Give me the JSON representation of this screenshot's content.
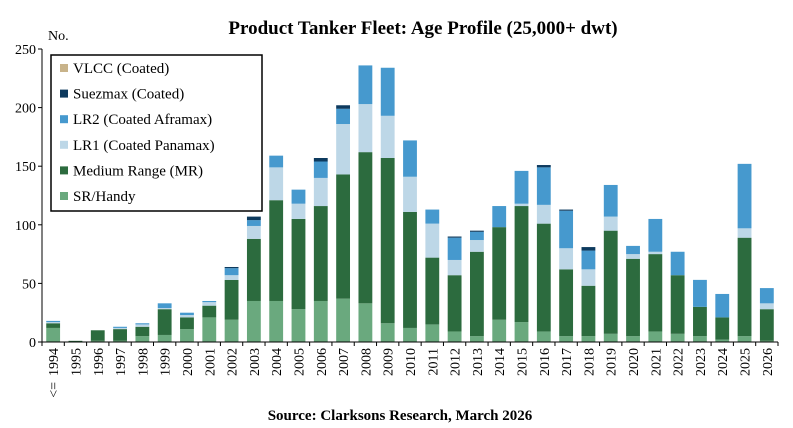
{
  "chart_data": {
    "type": "bar",
    "stacked": true,
    "title": "Product Tanker Fleet: Age Profile (25,000+ dwt)",
    "source": "Source: Clarksons Research, March 2026",
    "ylabel": "No.",
    "first_category_marker": "<=",
    "ylim": [
      0,
      250
    ],
    "yticks": [
      0,
      50,
      100,
      150,
      200,
      250
    ],
    "grid": false,
    "legend_position": "top-left",
    "categories": [
      "1994",
      "1995",
      "1996",
      "1997",
      "1998",
      "1999",
      "2000",
      "2001",
      "2002",
      "2003",
      "2004",
      "2005",
      "2006",
      "2007",
      "2008",
      "2009",
      "2010",
      "2011",
      "2012",
      "2013",
      "2014",
      "2015",
      "2016",
      "2017",
      "2018",
      "2019",
      "2020",
      "2021",
      "2022",
      "2023",
      "2024",
      "2025",
      "2026"
    ],
    "series": [
      {
        "name": "SR/Handy",
        "color": "#6aa97e",
        "values": [
          12,
          0,
          1,
          1,
          5,
          6,
          11,
          21,
          19,
          35,
          35,
          28,
          35,
          37,
          33,
          16,
          12,
          15,
          9,
          5,
          19,
          17,
          9,
          5,
          5,
          7,
          5,
          9,
          7,
          5,
          2,
          5,
          1
        ]
      },
      {
        "name": "Medium Range (MR)",
        "color": "#2c6b3e",
        "values": [
          4,
          1,
          9,
          10,
          8,
          22,
          10,
          10,
          34,
          53,
          86,
          77,
          81,
          106,
          129,
          141,
          99,
          57,
          48,
          72,
          79,
          99,
          92,
          57,
          43,
          88,
          66,
          66,
          50,
          25,
          19,
          84,
          27
        ]
      },
      {
        "name": "LR1 (Coated Panamax)",
        "color": "#bdd7e7",
        "values": [
          1,
          0,
          0,
          1,
          2,
          1,
          2,
          3,
          4,
          11,
          28,
          13,
          24,
          43,
          41,
          36,
          30,
          29,
          13,
          10,
          0,
          2,
          16,
          18,
          14,
          12,
          4,
          2,
          0,
          0,
          0,
          8,
          5
        ]
      },
      {
        "name": "LR2 (Coated Aframax)",
        "color": "#4699ce",
        "values": [
          1,
          0,
          0,
          1,
          1,
          4,
          2,
          1,
          6,
          5,
          10,
          12,
          14,
          13,
          33,
          41,
          31,
          12,
          19,
          7,
          18,
          28,
          32,
          32,
          16,
          27,
          7,
          28,
          20,
          23,
          20,
          55,
          13
        ]
      },
      {
        "name": "Suezmax (Coated)",
        "color": "#0d3a5e",
        "values": [
          0,
          0,
          0,
          0,
          0,
          0,
          0,
          0,
          1,
          3,
          0,
          0,
          3,
          3,
          0,
          0,
          0,
          0,
          1,
          1,
          0,
          0,
          2,
          1,
          3,
          0,
          0,
          0,
          0,
          0,
          0,
          0,
          0
        ]
      },
      {
        "name": "VLCC (Coated)",
        "color": "#c8b38a",
        "values": [
          0,
          0,
          0,
          0,
          0,
          0,
          0,
          0,
          0,
          0,
          0,
          0,
          0,
          0,
          0,
          0,
          0,
          0,
          0,
          0,
          0,
          0,
          0,
          0,
          0,
          0,
          0,
          0,
          0,
          0,
          0,
          0,
          0
        ]
      }
    ]
  }
}
